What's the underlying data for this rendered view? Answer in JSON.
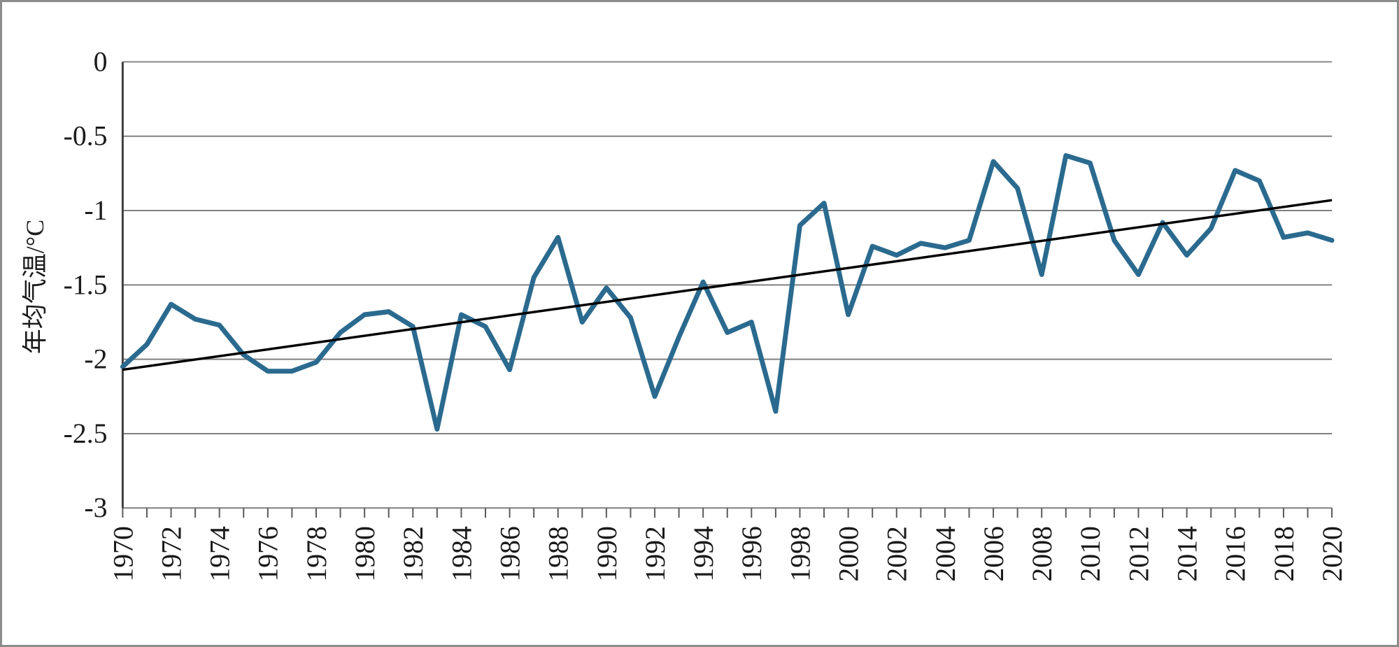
{
  "chart_data": {
    "type": "line",
    "title": "",
    "xlabel": "",
    "ylabel": "年均气温/°C",
    "ylim": [
      -3,
      0
    ],
    "y_ticks": [
      0,
      -0.5,
      -1,
      -1.5,
      -2,
      -2.5,
      -3
    ],
    "y_tick_labels": [
      "0",
      "-0.5",
      "-1",
      "-1.5",
      "-2",
      "-2.5",
      "-3"
    ],
    "x_range": [
      1970,
      2020
    ],
    "x_label_step": 2,
    "x_tick_step": 1,
    "grid": true,
    "legend_position": "none",
    "categories": [
      1970,
      1971,
      1972,
      1973,
      1974,
      1975,
      1976,
      1977,
      1978,
      1979,
      1980,
      1981,
      1982,
      1983,
      1984,
      1985,
      1986,
      1987,
      1988,
      1989,
      1990,
      1991,
      1992,
      1993,
      1994,
      1995,
      1996,
      1997,
      1998,
      1999,
      2000,
      2001,
      2002,
      2003,
      2004,
      2005,
      2006,
      2007,
      2008,
      2009,
      2010,
      2011,
      2012,
      2013,
      2014,
      2015,
      2016,
      2017,
      2018,
      2019,
      2020
    ],
    "series": [
      {
        "name": "年均气温",
        "color": "#2b6a8f",
        "values": [
          -2.05,
          -1.9,
          -1.63,
          -1.73,
          -1.77,
          -1.97,
          -2.08,
          -2.08,
          -2.02,
          -1.82,
          -1.7,
          -1.68,
          -1.78,
          -2.47,
          -1.7,
          -1.78,
          -2.07,
          -1.45,
          -1.18,
          -1.75,
          -1.52,
          -1.72,
          -2.25,
          -1.85,
          -1.48,
          -1.82,
          -1.75,
          -2.35,
          -1.1,
          -0.95,
          -1.7,
          -1.24,
          -1.3,
          -1.22,
          -1.25,
          -1.2,
          -0.67,
          -0.85,
          -1.43,
          -0.63,
          -0.68,
          -1.2,
          -1.43,
          -1.08,
          -1.3,
          -1.12,
          -0.73,
          -0.8,
          -1.18,
          -1.15,
          -1.2
        ]
      }
    ],
    "trend_line": {
      "name": "trend",
      "color": "#000000",
      "x": [
        1970,
        2020
      ],
      "y": [
        -2.07,
        -0.93
      ]
    },
    "colors": {
      "series": "#2b6a8f",
      "trend": "#000000",
      "grid": "#808080",
      "axis": "#595959",
      "y_axis_line": "#3f3f3f",
      "text": "#1a1a1a",
      "background": "#ffffff",
      "frame_border": "#8c8c8c"
    }
  }
}
